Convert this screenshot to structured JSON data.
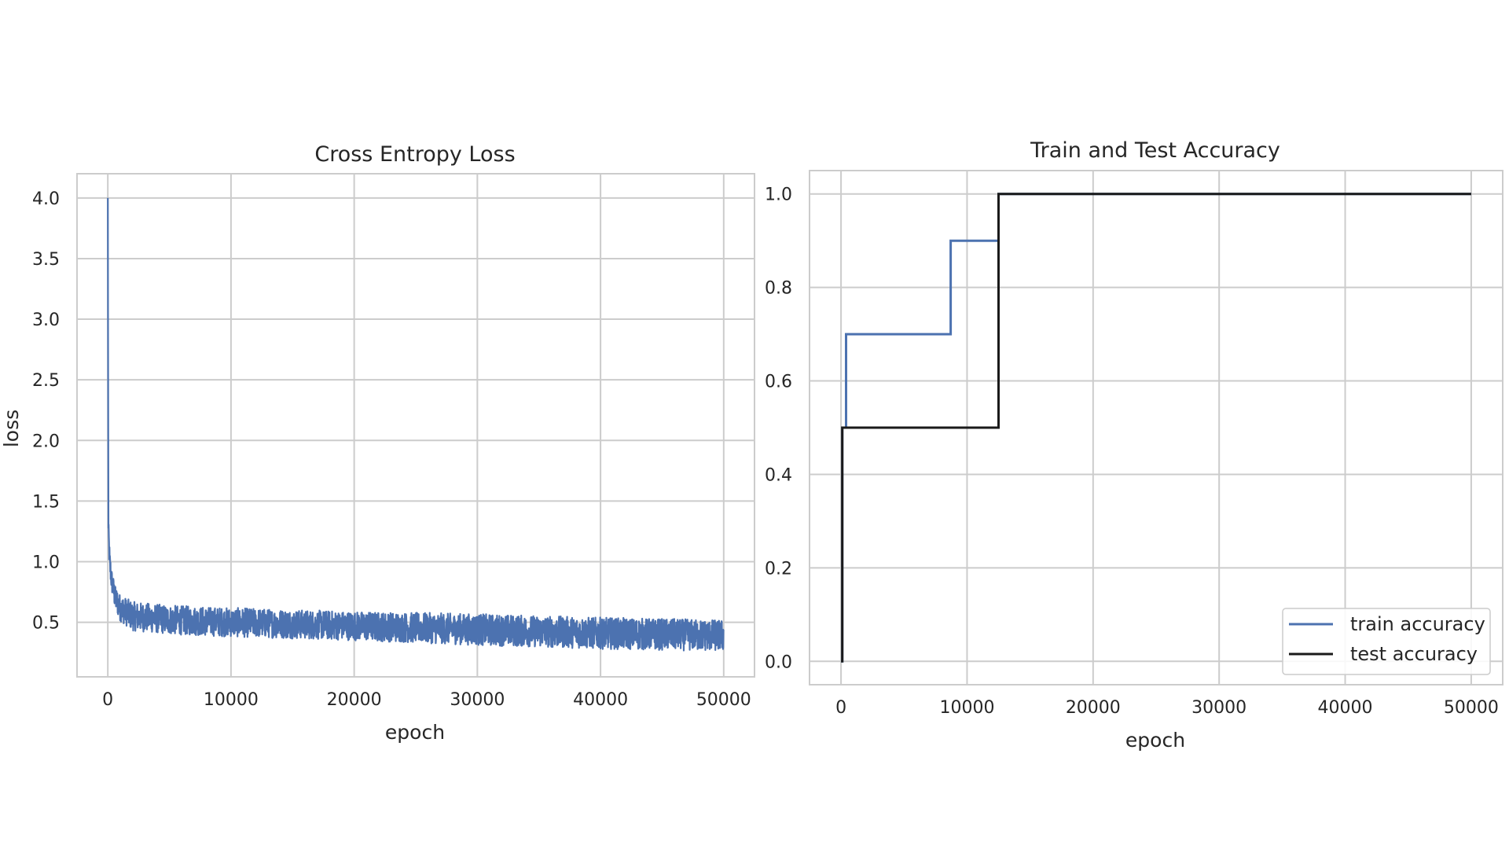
{
  "chart_data": [
    {
      "type": "line",
      "title": "Cross Entropy Loss",
      "xlabel": "epoch",
      "ylabel": "loss",
      "xlim": [
        -2500,
        52500
      ],
      "ylim": [
        0.05,
        4.2
      ],
      "xticks": [
        0,
        10000,
        20000,
        30000,
        40000,
        50000
      ],
      "xtick_labels": [
        "0",
        "10000",
        "20000",
        "30000",
        "40000",
        "50000"
      ],
      "yticks": [
        0.5,
        1.0,
        1.5,
        2.0,
        2.5,
        3.0,
        3.5,
        4.0
      ],
      "ytick_labels": [
        "0.5",
        "1.0",
        "1.5",
        "2.0",
        "2.5",
        "3.0",
        "3.5",
        "4.0"
      ],
      "grid": true,
      "series": [
        {
          "color": "#4c72b0",
          "x": [
            0,
            50,
            150,
            300,
            600,
            1000,
            2000,
            5000,
            10000,
            20000,
            30000,
            40000,
            50000
          ],
          "y": [
            4.0,
            1.25,
            1.0,
            0.85,
            0.7,
            0.62,
            0.55,
            0.52,
            0.5,
            0.47,
            0.44,
            0.41,
            0.39
          ],
          "noise_band": [
            0.13,
            0.1,
            0.1,
            0.1,
            0.1,
            0.11,
            0.12,
            0.12,
            0.12,
            0.12,
            0.13,
            0.13,
            0.13
          ]
        }
      ]
    },
    {
      "type": "line",
      "title": "Train and Test Accuracy",
      "xlabel": "epoch",
      "ylabel": "",
      "xlim": [
        -2500,
        52500
      ],
      "ylim": [
        -0.05,
        1.05
      ],
      "xticks": [
        0,
        10000,
        20000,
        30000,
        40000,
        50000
      ],
      "xtick_labels": [
        "0",
        "10000",
        "20000",
        "30000",
        "40000",
        "50000"
      ],
      "yticks": [
        0.0,
        0.2,
        0.4,
        0.6,
        0.8,
        1.0
      ],
      "ytick_labels": [
        "0.0",
        "0.2",
        "0.4",
        "0.6",
        "0.8",
        "1.0"
      ],
      "grid": true,
      "legend": "lower-right",
      "series": [
        {
          "name": "train accuracy",
          "color": "#4c72b0",
          "x": [
            0,
            100,
            100,
            400,
            400,
            8700,
            8700,
            12500,
            12500,
            50000
          ],
          "y": [
            0.0,
            0.0,
            0.5,
            0.5,
            0.7,
            0.7,
            0.9,
            0.9,
            1.0,
            1.0
          ]
        },
        {
          "name": "test accuracy",
          "color": "#1a1a1a",
          "x": [
            0,
            100,
            100,
            12500,
            12500,
            50000
          ],
          "y": [
            0.0,
            0.0,
            0.5,
            0.5,
            1.0,
            1.0
          ]
        }
      ]
    }
  ]
}
